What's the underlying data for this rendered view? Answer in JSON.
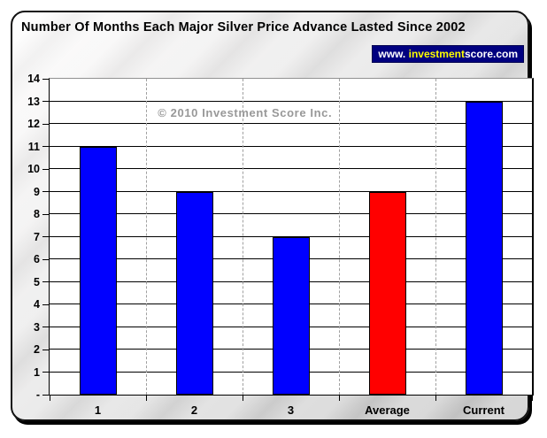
{
  "header": {
    "badge": {
      "prefix": "www. ",
      "highlight": "investment",
      "suffix": "score.com",
      "background": "#000080",
      "prefix_color": "#ffffff",
      "highlight_color": "#ffff00",
      "suffix_color": "#ffffff"
    }
  },
  "watermark": "© 2010 Investment Score Inc.",
  "chart_data": {
    "type": "bar",
    "title": "Number Of Months Each Major Silver Price Advance Lasted Since 2002",
    "categories": [
      "1",
      "2",
      "3",
      "Average",
      "Current"
    ],
    "values": [
      11,
      9,
      7,
      9,
      13
    ],
    "bar_colors": [
      "#0000ff",
      "#0000ff",
      "#0000ff",
      "#ff0000",
      "#0000ff"
    ],
    "xlabel": "",
    "ylabel": "",
    "ylim": [
      0,
      14
    ],
    "y_tick_step": 1,
    "y_tick_labels": [
      "-",
      "1",
      "2",
      "3",
      "4",
      "5",
      "6",
      "7",
      "8",
      "9",
      "10",
      "11",
      "12",
      "13",
      "14"
    ],
    "grid": {
      "horizontal": "solid black every 1 unit",
      "vertical": "dashed gray at category boundaries",
      "plot_background": "#ffffff"
    },
    "legend": "none"
  },
  "colors": {
    "bar_blue": "#0000ff",
    "bar_red": "#ff0000",
    "gridline": "#000000",
    "dashed_gridline": "#a0a0a0",
    "card_border": "#111111",
    "watermark_gray": "#989898"
  }
}
